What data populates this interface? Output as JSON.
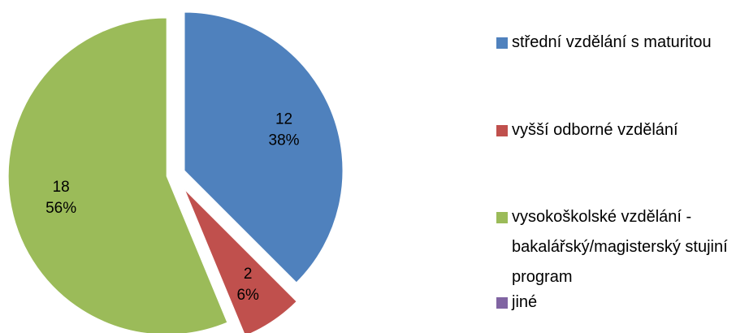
{
  "chart_data": {
    "type": "pie",
    "categories": [
      "střední vzdělání s maturitou",
      "vyšší odborné vzdělání",
      "vysokoškolské vzdělání - bakalářský/magisterský stujiní program",
      "jiné"
    ],
    "values": [
      12,
      2,
      18,
      0
    ],
    "percent_labels": [
      "38%",
      "6%",
      "56%",
      null
    ],
    "colors": [
      "#4f81bd",
      "#c0504d",
      "#9bbb59",
      "#8064a2"
    ],
    "explode": true
  }
}
